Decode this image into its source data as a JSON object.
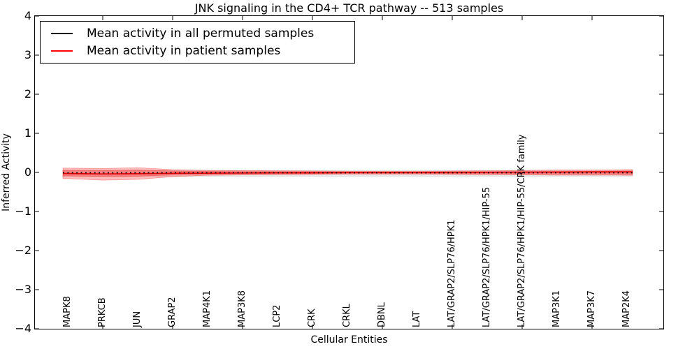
{
  "title": "JNK signaling in the CD4+ TCR pathway -- 513 samples",
  "axes": {
    "xlabel": "Cellular Entities",
    "ylabel": "Inferred Activity",
    "ytick_labels": [
      "4",
      "3",
      "2",
      "1",
      "0",
      "−1",
      "−2",
      "−3",
      "−4"
    ]
  },
  "legend": {
    "items": [
      {
        "label": "Mean activity in all permuted samples",
        "color": "#000000"
      },
      {
        "label": "Mean activity in patient samples",
        "color": "#ff0000"
      }
    ]
  },
  "chart_data": {
    "type": "line",
    "title": "JNK signaling in the CD4+ TCR pathway -- 513 samples",
    "xlabel": "Cellular Entities",
    "ylabel": "Inferred Activity",
    "ylim": [
      -4,
      4
    ],
    "yticks": [
      4,
      3,
      2,
      1,
      0,
      -1,
      -2,
      -3,
      -4
    ],
    "grid": false,
    "legend_position": "upper left",
    "categories": [
      "MAPK8",
      "PRKCB",
      "JUN",
      "GRAP2",
      "MAP4K1",
      "MAP3K8",
      "LCP2",
      "CRK",
      "CRKL",
      "DBNL",
      "LAT",
      "LAT/GRAP2/SLP76/HPK1",
      "LAT/GRAP2/SLP76/HPK1/HIP-55",
      "LAT/GRAP2/SLP76/HPK1/HIP-55/CRK family",
      "MAP3K1",
      "MAP3K7",
      "MAP2K4"
    ],
    "series": [
      {
        "name": "Mean activity in all permuted samples",
        "color": "#000000",
        "line_style": "dotted",
        "values": [
          0,
          0,
          0,
          0,
          0,
          0,
          0,
          0,
          0,
          0,
          0,
          0,
          0,
          0,
          0,
          0,
          0
        ]
      },
      {
        "name": "Mean activity in patient samples",
        "color": "#e60000",
        "line_style": "solid",
        "values": [
          -0.02,
          -0.03,
          -0.025,
          -0.015,
          -0.01,
          -0.005,
          0,
          0,
          0.005,
          0.005,
          0.005,
          0.01,
          0.01,
          0.015,
          0.015,
          0.02,
          0.02
        ]
      }
    ],
    "bands": [
      {
        "name": "permuted samples std band",
        "color": "#888888",
        "opacity": 0.18,
        "upper": [
          0.06,
          0.06,
          0.06,
          0.06,
          0.06,
          0.06,
          0.06,
          0.06,
          0.06,
          0.06,
          0.06,
          0.06,
          0.06,
          0.06,
          0.06,
          0.06,
          0.06
        ],
        "lower": [
          -0.09,
          -0.09,
          -0.09,
          -0.09,
          -0.09,
          -0.09,
          -0.09,
          -0.09,
          -0.09,
          -0.09,
          -0.09,
          -0.09,
          -0.09,
          -0.09,
          -0.09,
          -0.09,
          -0.09
        ]
      },
      {
        "name": "patient samples std band outer",
        "color": "#ff0000",
        "opacity": 0.26,
        "upper": [
          0.12,
          0.11,
          0.13,
          0.08,
          0.06,
          0.055,
          0.05,
          0.045,
          0.04,
          0.04,
          0.04,
          0.045,
          0.05,
          0.06,
          0.07,
          0.07,
          0.08
        ],
        "lower": [
          -0.15,
          -0.19,
          -0.17,
          -0.1,
          -0.065,
          -0.055,
          -0.05,
          -0.045,
          -0.04,
          -0.04,
          -0.04,
          -0.045,
          -0.05,
          -0.055,
          -0.06,
          -0.06,
          -0.065
        ]
      },
      {
        "name": "patient samples std band inner",
        "color": "#ff0000",
        "opacity": 0.26,
        "upper": [
          0.065,
          0.06,
          0.07,
          0.045,
          0.035,
          0.03,
          0.028,
          0.025,
          0.022,
          0.022,
          0.022,
          0.025,
          0.028,
          0.033,
          0.04,
          0.04,
          0.045
        ],
        "lower": [
          -0.08,
          -0.1,
          -0.09,
          -0.055,
          -0.036,
          -0.03,
          -0.028,
          -0.025,
          -0.022,
          -0.022,
          -0.022,
          -0.025,
          -0.028,
          -0.03,
          -0.033,
          -0.033,
          -0.036
        ]
      }
    ]
  }
}
